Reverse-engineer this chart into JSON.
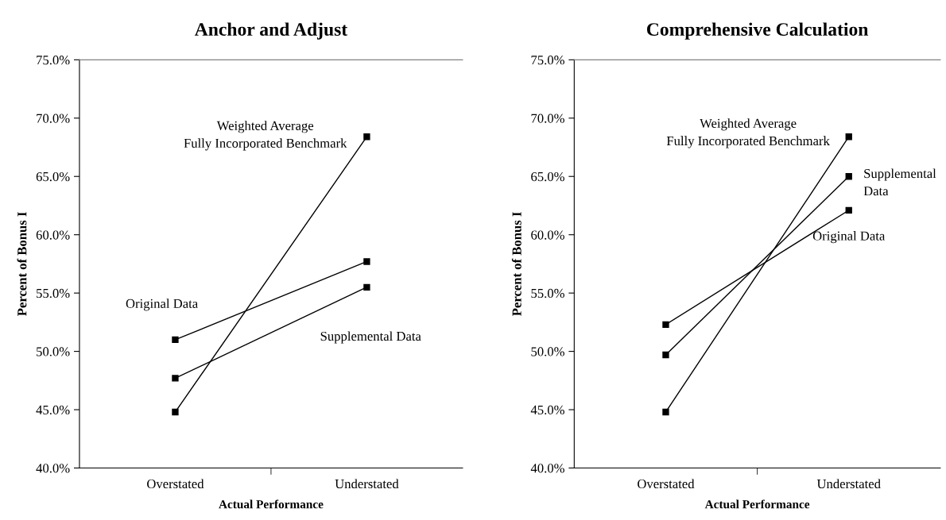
{
  "chart_data": [
    {
      "type": "line",
      "title": "Anchor and Adjust",
      "xlabel": "Actual Performance",
      "ylabel": "Percent of Bonus I",
      "categories": [
        "Overstated",
        "Understated"
      ],
      "marker": "square",
      "grid": false,
      "legend": false,
      "ylim": [
        40,
        75
      ],
      "yticks": [
        {
          "value": 40,
          "label": "40.0%"
        },
        {
          "value": 45,
          "label": "45.0%"
        },
        {
          "value": 50,
          "label": "50.0%"
        },
        {
          "value": 55,
          "label": "55.0%"
        },
        {
          "value": 60,
          "label": "60.0%"
        },
        {
          "value": 65,
          "label": "65.0%"
        },
        {
          "value": 70,
          "label": "70.0%"
        },
        {
          "value": 75,
          "label": "75.0%"
        }
      ],
      "series": [
        {
          "name": "Original Data",
          "color": "#000000",
          "values": [
            51.0,
            57.7
          ]
        },
        {
          "name": "Supplemental Data",
          "color": "#000000",
          "values": [
            47.7,
            55.5
          ]
        },
        {
          "name": "Weighted Average\nFully Incorporated Benchmark",
          "color": "#000000",
          "values": [
            44.8,
            68.4
          ]
        }
      ]
    },
    {
      "type": "line",
      "title": "Comprehensive Calculation",
      "xlabel": "Actual Performance",
      "ylabel": "Percent of Bonus I",
      "categories": [
        "Overstated",
        "Understated"
      ],
      "marker": "square",
      "grid": false,
      "legend": false,
      "ylim": [
        40,
        75
      ],
      "yticks": [
        {
          "value": 40,
          "label": "40.0%"
        },
        {
          "value": 45,
          "label": "45.0%"
        },
        {
          "value": 50,
          "label": "50.0%"
        },
        {
          "value": 55,
          "label": "55.0%"
        },
        {
          "value": 60,
          "label": "60.0%"
        },
        {
          "value": 65,
          "label": "65.0%"
        },
        {
          "value": 70,
          "label": "70.0%"
        },
        {
          "value": 75,
          "label": "75.0%"
        }
      ],
      "series": [
        {
          "name": "Original Data",
          "color": "#000000",
          "values": [
            52.3,
            62.1
          ]
        },
        {
          "name": "Supplemental\nData",
          "color": "#000000",
          "values": [
            49.7,
            65.0
          ]
        },
        {
          "name": "Weighted Average\nFully Incorporated Benchmark",
          "color": "#000000",
          "values": [
            44.8,
            68.4
          ]
        }
      ]
    }
  ]
}
